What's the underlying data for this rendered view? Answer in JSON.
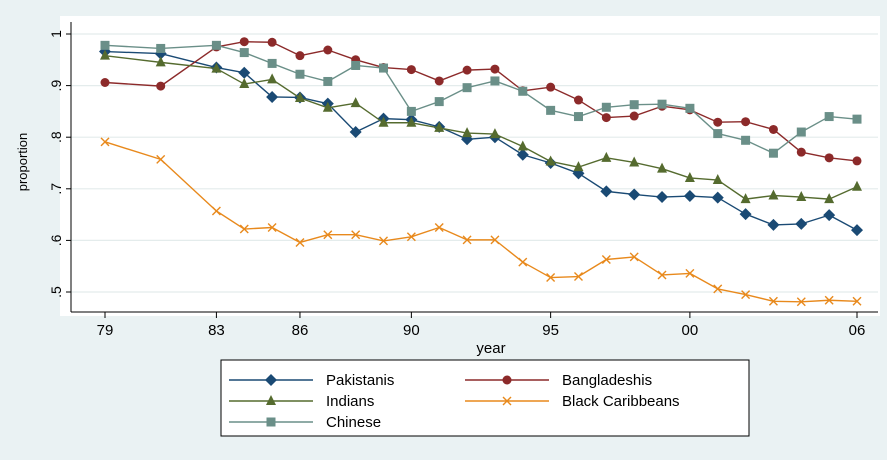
{
  "chart_data": {
    "type": "line",
    "xlabel": "year",
    "ylabel": "proportion",
    "xlim": [
      1979,
      2006
    ],
    "ylim": [
      0.5,
      1.0
    ],
    "grid": "horizontal",
    "legend_position": "bottom",
    "x_ticks": [
      {
        "value": 1979,
        "label": "79"
      },
      {
        "value": 1983,
        "label": "83"
      },
      {
        "value": 1986,
        "label": "86"
      },
      {
        "value": 1990,
        "label": "90"
      },
      {
        "value": 1995,
        "label": "95"
      },
      {
        "value": 2000,
        "label": "00"
      },
      {
        "value": 2006,
        "label": "06"
      }
    ],
    "y_ticks": [
      {
        "value": 0.5,
        "label": ".5"
      },
      {
        "value": 0.6,
        "label": ".6"
      },
      {
        "value": 0.7,
        "label": ".7"
      },
      {
        "value": 0.8,
        "label": ".8"
      },
      {
        "value": 0.9,
        "label": ".9"
      },
      {
        "value": 1.0,
        "label": "1"
      }
    ],
    "x": [
      1979,
      1981,
      1983,
      1984,
      1985,
      1986,
      1987,
      1988,
      1989,
      1990,
      1991,
      1992,
      1993,
      1994,
      1995,
      1996,
      1997,
      1998,
      1999,
      2000,
      2001,
      2002,
      2003,
      2004,
      2005,
      2006
    ],
    "series": [
      {
        "name": "Pakistanis",
        "color": "#1a4a74",
        "marker": "diamond",
        "values": [
          0.966,
          0.962,
          0.935,
          0.925,
          0.878,
          0.877,
          0.865,
          0.81,
          0.836,
          0.834,
          0.82,
          0.796,
          0.8,
          0.766,
          0.75,
          0.73,
          0.695,
          0.689,
          0.684,
          0.686,
          0.683,
          0.651,
          0.63,
          0.632,
          0.649,
          0.62
        ]
      },
      {
        "name": "Bangladeshis",
        "color": "#8c2a2a",
        "marker": "circle",
        "values": [
          0.906,
          0.899,
          0.975,
          0.985,
          0.984,
          0.958,
          0.969,
          0.95,
          0.935,
          0.931,
          0.909,
          0.93,
          0.932,
          0.89,
          0.897,
          0.872,
          0.838,
          0.841,
          0.86,
          0.853,
          0.829,
          0.83,
          0.815,
          0.771,
          0.76,
          0.754
        ]
      },
      {
        "name": "Indians",
        "color": "#556b2f",
        "marker": "triangle",
        "values": [
          0.958,
          0.945,
          0.933,
          0.903,
          0.912,
          0.876,
          0.857,
          0.866,
          0.828,
          0.828,
          0.818,
          0.808,
          0.806,
          0.782,
          0.753,
          0.742,
          0.76,
          0.751,
          0.739,
          0.721,
          0.717,
          0.68,
          0.687,
          0.684,
          0.68,
          0.704
        ]
      },
      {
        "name": "Black Caribbeans",
        "color": "#e8891c",
        "marker": "x",
        "values": [
          0.791,
          0.757,
          0.657,
          0.622,
          0.625,
          0.596,
          0.611,
          0.611,
          0.599,
          0.607,
          0.625,
          0.601,
          0.601,
          0.558,
          0.528,
          0.53,
          0.563,
          0.568,
          0.533,
          0.536,
          0.506,
          0.495,
          0.482,
          0.481,
          0.484,
          0.482
        ]
      },
      {
        "name": "Chinese",
        "color": "#6a8f88",
        "marker": "square",
        "values": [
          0.978,
          0.972,
          0.978,
          0.964,
          0.943,
          0.922,
          0.908,
          0.939,
          0.934,
          0.85,
          0.869,
          0.896,
          0.909,
          0.889,
          0.852,
          0.84,
          0.858,
          0.863,
          0.864,
          0.856,
          0.807,
          0.794,
          0.769,
          0.81,
          0.84,
          0.835
        ]
      }
    ]
  }
}
